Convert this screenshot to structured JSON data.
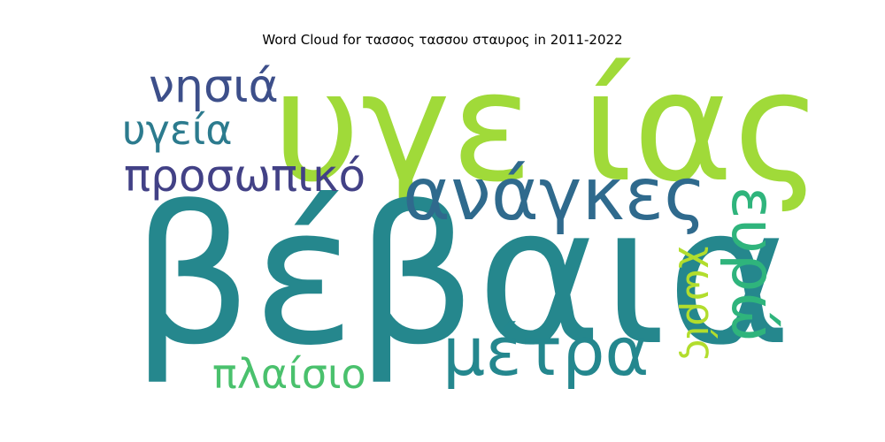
{
  "title": "Word Cloud for τασσος τασσου σταυρος in 2011-2022",
  "words": [
    {
      "id": "w1",
      "text": "υγε ίας",
      "color": "#a0da39"
    },
    {
      "id": "w2",
      "text": "βέβαια",
      "color": "#25878d"
    },
    {
      "id": "w3",
      "text": "ανάγκες",
      "color": "#2f6a8d"
    },
    {
      "id": "w4",
      "text": "νησιά",
      "color": "#3d4f8a"
    },
    {
      "id": "w5",
      "text": "υγεία",
      "color": "#2c7b8e"
    },
    {
      "id": "w6",
      "text": "προσωπικό",
      "color": "#424186"
    },
    {
      "id": "w7",
      "text": "μέτρα",
      "color": "#24878e"
    },
    {
      "id": "w8",
      "text": "πλαίσιο",
      "color": "#4ac16d"
    },
    {
      "id": "w9",
      "text": "ευρώ",
      "color": "#2fb47c"
    },
    {
      "id": "w10",
      "text": "χωρίς",
      "color": "#b2dd2d"
    }
  ]
}
